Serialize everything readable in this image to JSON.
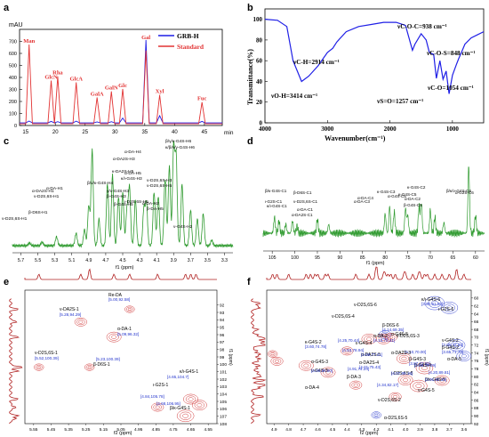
{
  "panel_labels": {
    "a": "a",
    "b": "b",
    "c": "c",
    "d": "d",
    "e": "e",
    "f": "f"
  },
  "colors": {
    "grb": "#1f1fe6",
    "std": "#e23333",
    "nmr": "#2e9a2e",
    "hsqc_red": "#cc2222",
    "hsqc_blue": "#2233cc",
    "ann_blue": "#2233cc"
  },
  "chart_data": [
    {
      "panel": "a",
      "type": "line",
      "title": "",
      "xlabel": "min",
      "ylabel": "mAU",
      "xlim": [
        14,
        48
      ],
      "ylim": [
        0,
        800
      ],
      "x_ticks": [
        "15",
        "20",
        "25",
        "30",
        "35",
        "40",
        "45"
      ],
      "y_ticks": [
        "0",
        "100",
        "200",
        "300",
        "400",
        "500",
        "600",
        "700"
      ],
      "legend": {
        "position": "top-right",
        "entries": [
          "GRB-H",
          "Standard"
        ]
      },
      "series": [
        {
          "name": "GRB-H",
          "peaks": [
            {
              "x": 15.6,
              "y": 15
            },
            {
              "x": 19.3,
              "y": 12
            },
            {
              "x": 20.4,
              "y": 10
            },
            {
              "x": 23.5,
              "y": 14
            },
            {
              "x": 27.0,
              "y": 8
            },
            {
              "x": 29.4,
              "y": 10
            },
            {
              "x": 31.3,
              "y": 40
            },
            {
              "x": 35.2,
              "y": 690
            },
            {
              "x": 37.5,
              "y": 60
            },
            {
              "x": 44.6,
              "y": 12
            }
          ]
        },
        {
          "name": "Standard",
          "peaks": [
            {
              "x": 15.6,
              "y": 660
            },
            {
              "x": 19.3,
              "y": 360
            },
            {
              "x": 20.4,
              "y": 395
            },
            {
              "x": 23.5,
              "y": 345
            },
            {
              "x": 27.0,
              "y": 220
            },
            {
              "x": 29.4,
              "y": 270
            },
            {
              "x": 31.3,
              "y": 290
            },
            {
              "x": 35.2,
              "y": 610
            },
            {
              "x": 37.5,
              "y": 240
            },
            {
              "x": 44.6,
              "y": 180
            }
          ]
        }
      ],
      "peak_labels": [
        {
          "text": "Man",
          "x": 15.6,
          "y": 660
        },
        {
          "text": "GlcN",
          "x": 19.3,
          "y": 360
        },
        {
          "text": "Rha",
          "x": 20.4,
          "y": 395
        },
        {
          "text": "GlcA",
          "x": 23.5,
          "y": 345
        },
        {
          "text": "GalA",
          "x": 27.0,
          "y": 220
        },
        {
          "text": "GalN",
          "x": 29.4,
          "y": 270
        },
        {
          "text": "Glc",
          "x": 31.3,
          "y": 290
        },
        {
          "text": "Gal",
          "x": 35.2,
          "y": 690
        },
        {
          "text": "Xyl",
          "x": 37.5,
          "y": 240
        },
        {
          "text": "Fuc",
          "x": 44.6,
          "y": 180
        }
      ]
    },
    {
      "panel": "b",
      "type": "line",
      "title": "",
      "xlabel": "Wavenumber(cm⁻¹)",
      "ylabel": "Transmittance(%)",
      "xlim": [
        4000,
        500
      ],
      "ylim": [
        0,
        110
      ],
      "x_ticks": [
        "4000",
        "3000",
        "2000",
        "1000"
      ],
      "y_ticks": [
        "0",
        "20",
        "40",
        "60",
        "80",
        "100"
      ],
      "series": [
        {
          "name": "",
          "points": [
            [
              4000,
              100
            ],
            [
              3800,
              99
            ],
            [
              3650,
              93
            ],
            [
              3550,
              60
            ],
            [
              3414,
              40
            ],
            [
              3300,
              45
            ],
            [
              3150,
              55
            ],
            [
              3000,
              68
            ],
            [
              2914,
              72
            ],
            [
              2850,
              78
            ],
            [
              2700,
              88
            ],
            [
              2500,
              93
            ],
            [
              2300,
              95
            ],
            [
              2100,
              97
            ],
            [
              1900,
              97
            ],
            [
              1750,
              94
            ],
            [
              1640,
              70
            ],
            [
              1600,
              76
            ],
            [
              1500,
              86
            ],
            [
              1420,
              80
            ],
            [
              1370,
              68
            ],
            [
              1300,
              66
            ],
            [
              1257,
              43
            ],
            [
              1200,
              60
            ],
            [
              1150,
              42
            ],
            [
              1100,
              50
            ],
            [
              1054,
              28
            ],
            [
              1000,
              46
            ],
            [
              938,
              56
            ],
            [
              900,
              62
            ],
            [
              848,
              69
            ],
            [
              800,
              76
            ],
            [
              700,
              82
            ],
            [
              600,
              85
            ],
            [
              500,
              88
            ]
          ]
        }
      ],
      "annotations": [
        {
          "text": "νO-H=3414 cm⁻¹",
          "x": 3414
        },
        {
          "text": "νC-H=2914 cm⁻¹",
          "x": 2914
        },
        {
          "text": "νC-O-C=938 cm⁻¹",
          "x": 938
        },
        {
          "text": "νC-O-S=848 cm⁻¹",
          "x": 848
        },
        {
          "text": "νC-O=1054 cm⁻¹",
          "x": 1054
        },
        {
          "text": "νS=O=1257 cm⁻¹",
          "x": 1257
        }
      ]
    },
    {
      "panel": "c",
      "type": "line",
      "title": "",
      "xlabel": "f1 (ppm)",
      "ylabel": "",
      "xlim": [
        5.8,
        3.2
      ],
      "x_ticks": [
        "5.7",
        "5.5",
        "5.3",
        "5.1",
        "4.9",
        "4.7",
        "4.5",
        "4.3",
        "4.1",
        "3.9",
        "3.7",
        "3.5",
        "3.3"
      ],
      "annotations": [
        {
          "text": "α-DA-H4",
          "x": 4.5
        },
        {
          "text": "α-DA2S-H3",
          "x": 4.42
        },
        {
          "text": "β/γ/κ-G4S-H6",
          "x": 3.87
        },
        {
          "text": "κ/β/ν/γ-G4S-H6",
          "x": 3.9
        },
        {
          "text": "α-DA-H1",
          "x": 5.28
        },
        {
          "text": "ν-D2S,6S-H1",
          "x": 5.6
        },
        {
          "text": "β-D6S-H1",
          "x": 5.45
        },
        {
          "text": "β/ν/κ-G4S-H4",
          "x": 5.05
        },
        {
          "text": "α-DA-H5",
          "x": 4.62
        },
        {
          "text": "κ/ι-G4S-H3",
          "x": 4.68
        },
        {
          "text": "ν-D2S,6S-H3",
          "x": 4.0
        },
        {
          "text": "ν-D2S,6S-H5",
          "x": 3.95
        },
        {
          "text": "ν-D2S,6S-H1",
          "x": 5.45
        },
        {
          "text": "α-DA2S-H1",
          "x": 5.28
        },
        {
          "text": "γ/ν-G4S-H3",
          "x": 4.25
        },
        {
          "text": "β-G4S-H3",
          "x": 4.22
        },
        {
          "text": "α-DA-H2",
          "x": 4.13
        },
        {
          "text": "β-DA-H5",
          "x": 4.08
        },
        {
          "text": "κ-DA2S-H5",
          "x": 4.35
        },
        {
          "text": "ι-D2S,6S-H5",
          "x": 4.2
        },
        {
          "text": "β-G4S-H5",
          "x": 4.1
        },
        {
          "text": "ν-G4S-H2",
          "x": 3.55
        }
      ]
    },
    {
      "panel": "d",
      "type": "line",
      "title": "",
      "xlabel": "f1 (ppm)",
      "ylabel": "",
      "xlim": [
        107,
        58
      ],
      "x_ticks": [
        "105",
        "100",
        "95",
        "90",
        "85",
        "80",
        "75",
        "70",
        "65",
        "60"
      ],
      "annotations": [
        {
          "text": "β/κ-G4S-C1",
          "x": 103.5
        },
        {
          "text": "β-D6S-C1",
          "x": 100.5
        },
        {
          "text": "ι-G2S-C1",
          "x": 104.5
        },
        {
          "text": "κ/ι-G4S-C1",
          "x": 104.0
        },
        {
          "text": "ν-D2S,6S-C1",
          "x": 99.5
        },
        {
          "text": "α-DA-C1",
          "x": 95.0
        },
        {
          "text": "α-DA2S-C1",
          "x": 92.5
        },
        {
          "text": "α-DA-C3",
          "x": 80.0
        },
        {
          "text": "κ-G4S-C3",
          "x": 79.0
        },
        {
          "text": "α-G4S-C5",
          "x": 75.0
        },
        {
          "text": "α-DA-C4",
          "x": 78.0
        },
        {
          "text": "κ-G4S-C5",
          "x": 75.5
        },
        {
          "text": "κ-G4S-C2",
          "x": 72.0
        },
        {
          "text": "α-DA-C2",
          "x": 70.0
        },
        {
          "text": "β-G4S-C5",
          "x": 72.5
        },
        {
          "text": "β/κ/ν-G4S-C6",
          "x": 61.5
        },
        {
          "text": "α-G2S-C6",
          "x": 60.0
        }
      ]
    },
    {
      "panel": "e",
      "type": "scatter",
      "title": "",
      "xlabel": "f2 (ppm)",
      "ylabel": "f1 (ppm)",
      "xlim": [
        5.6,
        4.5
      ],
      "ylim": [
        90,
        108
      ],
      "x_ticks": [
        "5.55",
        "5.45",
        "5.35",
        "5.25",
        "5.15",
        "5.05",
        "4.95",
        "4.85",
        "4.75",
        "4.65",
        "4.55"
      ],
      "y_ticks": [
        "92",
        "93",
        "94",
        "95",
        "96",
        "97",
        "98",
        "99",
        "100",
        "101",
        "102",
        "103",
        "104",
        "105",
        "106",
        "107",
        "108"
      ],
      "labels": [
        {
          "text": "Re-DA",
          "cross": "[5.00,92.58]",
          "x": 5.0,
          "y": 92.58
        },
        {
          "text": "ν-DA2S-1",
          "cross": "[5.28,94.29]",
          "x": 5.28,
          "y": 94.29
        },
        {
          "text": "α-DA-1",
          "cross": "[5.09,96.32]",
          "x": 5.09,
          "y": 96.32
        },
        {
          "text": "ν-D2S,6S-1",
          "cross": "[5.52,100.39]",
          "x": 5.52,
          "y": 100.39
        },
        {
          "text": "",
          "cross": "[5.23,100.39]",
          "x": 5.23,
          "y": 100.39
        },
        {
          "text": "β-D6S-1",
          "cross": "",
          "x": 5.23,
          "y": 100.9
        },
        {
          "text": "κ/ι-G4S-1",
          "cross": "[4.65,104.7]",
          "x": 4.65,
          "y": 104.7
        },
        {
          "text": "ι-G2S-1",
          "cross": "[4.84,105.78]",
          "x": 4.84,
          "y": 105.78
        },
        {
          "text": "",
          "cross": "[4.68,106.95]",
          "x": 4.68,
          "y": 106.95
        },
        {
          "text": "β/κ-G4S-1",
          "cross": "",
          "x": 4.62,
          "y": 107.3
        }
      ]
    },
    {
      "panel": "f",
      "type": "scatter",
      "title": "",
      "xlabel": "f2 (ppm)",
      "ylabel": "f1 (ppm)",
      "xlim": [
        4.95,
        3.55
      ],
      "ylim": [
        58,
        92
      ],
      "x_ticks": [
        "4.9",
        "4.8",
        "4.7",
        "4.6",
        "4.5",
        "4.4",
        "4.3",
        "4.2",
        "4.1",
        "4.0",
        "3.9",
        "3.8",
        "3.7",
        "3.6"
      ],
      "y_ticks": [
        "60",
        "62",
        "64",
        "66",
        "68",
        "70",
        "72",
        "74",
        "76",
        "78",
        "80",
        "82",
        "84",
        "86",
        "88",
        "90",
        "92"
      ],
      "labels": [
        {
          "text": "ν-D2S,6S-6",
          "cross": "",
          "x": 4.2,
          "y": 62
        },
        {
          "text": "κ/ι-G4S-6",
          "cross": "[3.80,61.30]",
          "x": 3.8,
          "y": 61.3
        },
        {
          "text": "ι-G2S-6",
          "cross": "",
          "x": 3.7,
          "y": 62.5
        },
        {
          "text": "ν-D2S,6S-4",
          "cross": "",
          "x": 4.55,
          "y": 68
        },
        {
          "text": "β-D6S-6",
          "cross": "[4.14,69.35]",
          "x": 4.14,
          "y": 69.35
        },
        {
          "text": "",
          "cross": "[4.25,70.44]",
          "x": 4.25,
          "y": 70.44
        },
        {
          "text": "α-DA-2",
          "cross": "[4.15,70.41]",
          "x": 4.15,
          "y": 70.41
        },
        {
          "text": "α-G4S-5",
          "cross": "",
          "x": 3.9,
          "y": 71
        },
        {
          "text": "ν-D2S,6S-3",
          "cross": "",
          "x": 3.85,
          "y": 72
        },
        {
          "text": "ν-G4S-2",
          "cross": "[3.65,72.01]",
          "x": 3.65,
          "y": 72.01
        },
        {
          "text": "β-G4S-2",
          "cross": "[3.65,71.73]",
          "x": 3.65,
          "y": 71.73
        },
        {
          "text": "",
          "cross": "[4.10,70.00]",
          "x": 4.1,
          "y": 70.0
        },
        {
          "text": "α-DA-5",
          "cross": "",
          "x": 4.12,
          "y": 71.2
        },
        {
          "text": "κ-G4S-2",
          "cross": "[3.60,74.78]",
          "x": 3.6,
          "y": 74.78
        },
        {
          "text": "ε-G4S-4",
          "cross": "[4.91,74.24]",
          "x": 4.91,
          "y": 74.24
        },
        {
          "text": "α-DA2S-3",
          "cross": "",
          "x": 4.65,
          "y": 73.5
        },
        {
          "text": "",
          "cross": "[4.53,78.94]",
          "x": 4.53,
          "y": 78.94
        },
        {
          "text": "α-DA2S-5",
          "cross": "[4.68,77.21]",
          "x": 4.68,
          "y": 77.21
        },
        {
          "text": "α-DA2S-4",
          "cross": "[4.01,75.43]",
          "x": 4.01,
          "y": 75.43
        },
        {
          "text": "β-G4S-3",
          "cross": "[3.87,77.85]",
          "x": 3.87,
          "y": 77.85
        },
        {
          "text": "β-G4S-4",
          "cross": "[4.88,76.09]",
          "x": 4.88,
          "y": 76.09
        },
        {
          "text": "ν-G4S-3",
          "cross": "[4.00,80.90]",
          "x": 4.0,
          "y": 80.9
        },
        {
          "text": "α-G4S-3",
          "cross": "",
          "x": 3.95,
          "y": 79.5
        },
        {
          "text": "β-DA-3",
          "cross": "",
          "x": 4.6,
          "y": 82
        },
        {
          "text": "α-DA-4",
          "cross": "",
          "x": 4.8,
          "y": 80
        },
        {
          "text": "",
          "cross": "[4.34,82.17]",
          "x": 4.34,
          "y": 82.17
        },
        {
          "text": "ν-D2S,6S-2",
          "cross": "",
          "x": 4.62,
          "y": 85
        },
        {
          "text": "ι-D2S,6S-5",
          "cross": "[4.07,85.15]",
          "x": 4.07,
          "y": 85.15
        },
        {
          "text": "α-D2S,6S-5",
          "cross": "",
          "x": 4.2,
          "y": 83
        },
        {
          "text": "",
          "cross": "[4.20,89.81]",
          "x": 4.2,
          "y": 89.81
        },
        {
          "text": "β/κ-G4S-5",
          "cross": "[3.91,82.39]",
          "x": 3.91,
          "y": 82.39
        },
        {
          "text": "ν-G4S-5",
          "cross": "",
          "x": 3.75,
          "y": 81
        }
      ]
    }
  ]
}
